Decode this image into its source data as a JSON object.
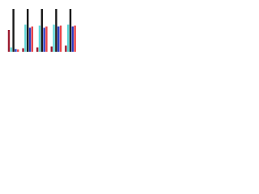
{
  "chart_data": {
    "type": "bar",
    "categories": [
      null,
      null,
      null,
      null,
      null
    ],
    "series": [
      {
        "color": "#9b1b30",
        "values": [
          50,
          8,
          10,
          12,
          14
        ]
      },
      {
        "color": "#5fd7d7",
        "values": [
          10,
          62,
          60,
          62,
          62
        ]
      },
      {
        "color": "#1a1a1a",
        "values": [
          98,
          98,
          98,
          98,
          98
        ]
      },
      {
        "color": "#2a3fc4",
        "values": [
          6,
          55,
          55,
          58,
          58
        ]
      },
      {
        "color": "#e8454a",
        "values": [
          5,
          58,
          58,
          60,
          60
        ]
      }
    ],
    "ylim": [
      0,
      100
    ],
    "grid": false
  }
}
